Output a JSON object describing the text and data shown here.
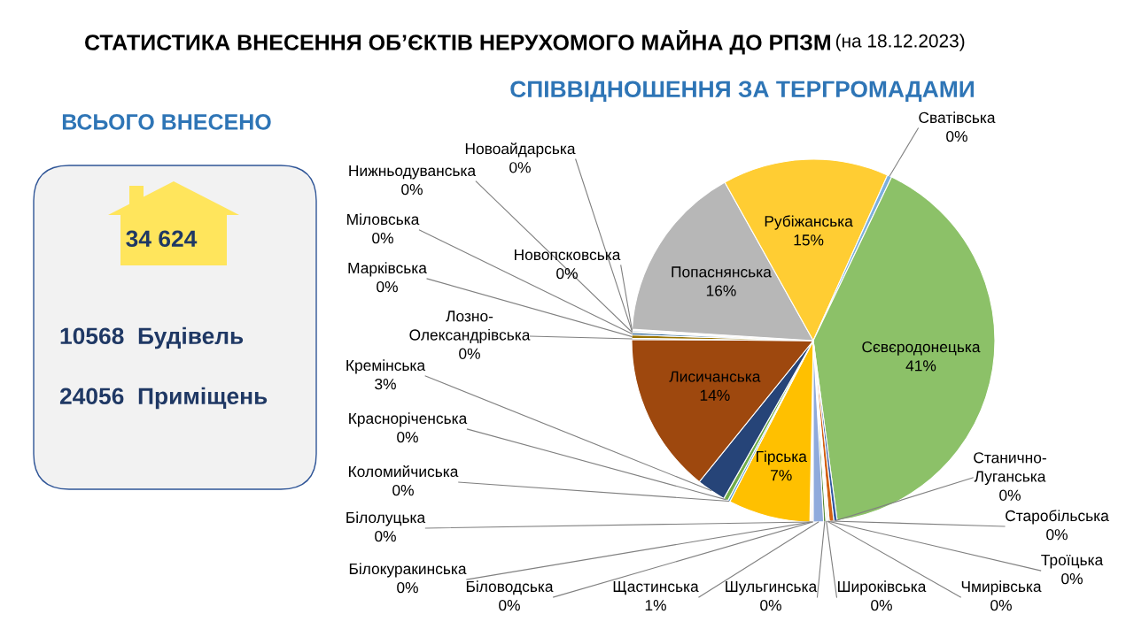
{
  "chart_data": {
    "type": "pie",
    "title": "СТАТИСТИКА ВНЕСЕННЯ ОБ’ЄКТІВ НЕРУХОМОГО МАЙНА ДО РПЗМ",
    "subtitle": "СПІВВІДНОШЕННЯ ЗА ТЕРГРОМАДАМИ",
    "annotations": [
      "(на 18.12.2023)",
      "ВСЬОГО ВНЕСЕНО",
      "34 624",
      "10568  Будівель",
      "24056  Приміщень"
    ],
    "categories": [
      "Біловодська",
      "Білокуракинська",
      "Білолуцька",
      "Гірська",
      "Коломийчиська",
      "Красноріченська",
      "Кремінська",
      "Лисичанська",
      "Лозно-\nОлександрівська",
      "Марківська",
      "Міловська",
      "Нижньодуванська",
      "Новоайдарська",
      "Новопсковська",
      "Попаснянська",
      "Рубіжанська",
      "Сватівська",
      "Сєвєродонецька",
      "Станично-\nЛуганська",
      "Старобільська",
      "Троїцька",
      "Чмирівська",
      "Широківська",
      "Шульгинська",
      "Щастинська"
    ],
    "values": [
      0.1,
      0.1,
      0.1,
      7.3,
      0.2,
      0.4,
      2.6,
      14.3,
      0.1,
      0.3,
      0.2,
      0.1,
      0.1,
      0.1,
      15.9,
      14.8,
      0.4,
      40.8,
      0.3,
      0.4,
      0.1,
      0.1,
      0.1,
      0.2,
      0.9
    ],
    "value_labels": [
      "0%",
      "0%",
      "0%",
      "7%",
      "0%",
      "0%",
      "3%",
      "14%",
      "0%",
      "0%",
      "0%",
      "0%",
      "0%",
      "0%",
      "16%",
      "15%",
      "0%",
      "41%",
      "0%",
      "0%",
      "0%",
      "0%",
      "0%",
      "0%",
      "1%"
    ],
    "colors": [
      "#4472c4",
      "#ed7d31",
      "#a5a5a5",
      "#ffc000",
      "#5b9bd5",
      "#70ad47",
      "#264478",
      "#9e480e",
      "#636363",
      "#997300",
      "#255e91",
      "#43682b",
      "#698ed0",
      "#f1975a",
      "#b7b7b7",
      "#ffcd33",
      "#7cafdd",
      "#8cc168",
      "#335aa1",
      "#d26012",
      "#848484",
      "#cc9a00",
      "#3c7ac7",
      "#5a8b39",
      "#8faadc"
    ]
  }
}
